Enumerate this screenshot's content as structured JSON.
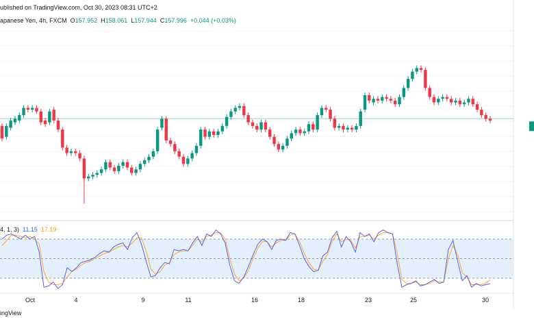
{
  "header": {
    "published": "ublished on TradingView.com, Oct 30, 2023 08:31 UTC+2",
    "symbol": "apanese Yen, 4h, FXCM",
    "open_label": "O",
    "open": "157.952",
    "high_label": "H",
    "high": "158.061",
    "low_label": "L",
    "low": "157.944",
    "close_label": "C",
    "close": "157.996",
    "change": "+0.044 (+0.03%)"
  },
  "oscillator": {
    "params": "4, 1, 3)",
    "k_value": "11.15",
    "d_value": "17.19",
    "levels": [
      80,
      50,
      20
    ]
  },
  "footer": {
    "brand": "ingView"
  },
  "colors": {
    "up": "#089981",
    "down": "#f23645",
    "k_line": "#5b5ef0",
    "d_line": "#ffa726",
    "band": "#e3f0fc",
    "price_line": "#8fd6c9",
    "grid": "#f0f3fa"
  },
  "chart_data": {
    "type": "candlestick",
    "xlabels": [
      "Oct",
      "4",
      "9",
      "11",
      "16",
      "18",
      "23",
      "25",
      "30"
    ],
    "candles": [
      {
        "o": 0.44,
        "c": 0.37
      },
      {
        "o": 0.38,
        "c": 0.44
      },
      {
        "o": 0.43,
        "c": 0.47
      },
      {
        "o": 0.46,
        "c": 0.48
      },
      {
        "o": 0.47,
        "c": 0.5
      },
      {
        "o": 0.5,
        "c": 0.54
      },
      {
        "o": 0.54,
        "c": 0.53
      },
      {
        "o": 0.53,
        "c": 0.54
      },
      {
        "o": 0.54,
        "c": 0.52
      },
      {
        "o": 0.52,
        "c": 0.46
      },
      {
        "o": 0.47,
        "c": 0.45
      },
      {
        "o": 0.46,
        "c": 0.52
      },
      {
        "o": 0.53,
        "c": 0.47
      },
      {
        "o": 0.47,
        "c": 0.42
      },
      {
        "o": 0.42,
        "c": 0.32
      },
      {
        "o": 0.32,
        "c": 0.29
      },
      {
        "o": 0.29,
        "c": 0.3
      },
      {
        "o": 0.3,
        "c": 0.29
      },
      {
        "o": 0.29,
        "c": 0.26
      },
      {
        "o": 0.26,
        "c": 0.15
      },
      {
        "o": 0.15,
        "c": 0.16
      },
      {
        "o": 0.16,
        "c": 0.17
      },
      {
        "o": 0.17,
        "c": 0.18
      },
      {
        "o": 0.18,
        "c": 0.2
      },
      {
        "o": 0.2,
        "c": 0.24
      },
      {
        "o": 0.24,
        "c": 0.21
      },
      {
        "o": 0.21,
        "c": 0.19
      },
      {
        "o": 0.19,
        "c": 0.22
      },
      {
        "o": 0.22,
        "c": 0.24
      },
      {
        "o": 0.24,
        "c": 0.21
      },
      {
        "o": 0.21,
        "c": 0.18
      },
      {
        "o": 0.18,
        "c": 0.2
      },
      {
        "o": 0.2,
        "c": 0.23
      },
      {
        "o": 0.23,
        "c": 0.25
      },
      {
        "o": 0.25,
        "c": 0.27
      },
      {
        "o": 0.27,
        "c": 0.3
      },
      {
        "o": 0.3,
        "c": 0.42
      },
      {
        "o": 0.43,
        "c": 0.48
      },
      {
        "o": 0.48,
        "c": 0.36
      },
      {
        "o": 0.36,
        "c": 0.34
      },
      {
        "o": 0.34,
        "c": 0.3
      },
      {
        "o": 0.3,
        "c": 0.27
      },
      {
        "o": 0.27,
        "c": 0.23
      },
      {
        "o": 0.23,
        "c": 0.26
      },
      {
        "o": 0.26,
        "c": 0.29
      },
      {
        "o": 0.29,
        "c": 0.33
      },
      {
        "o": 0.33,
        "c": 0.42
      },
      {
        "o": 0.42,
        "c": 0.38
      },
      {
        "o": 0.38,
        "c": 0.41
      },
      {
        "o": 0.41,
        "c": 0.39
      },
      {
        "o": 0.39,
        "c": 0.41
      },
      {
        "o": 0.41,
        "c": 0.44
      },
      {
        "o": 0.44,
        "c": 0.49
      },
      {
        "o": 0.49,
        "c": 0.52
      },
      {
        "o": 0.52,
        "c": 0.54
      },
      {
        "o": 0.54,
        "c": 0.55
      },
      {
        "o": 0.55,
        "c": 0.5
      },
      {
        "o": 0.5,
        "c": 0.46
      },
      {
        "o": 0.46,
        "c": 0.44
      },
      {
        "o": 0.44,
        "c": 0.42
      },
      {
        "o": 0.42,
        "c": 0.46
      },
      {
        "o": 0.46,
        "c": 0.42
      },
      {
        "o": 0.42,
        "c": 0.38
      },
      {
        "o": 0.38,
        "c": 0.34
      },
      {
        "o": 0.34,
        "c": 0.31
      },
      {
        "o": 0.31,
        "c": 0.33
      },
      {
        "o": 0.33,
        "c": 0.37
      },
      {
        "o": 0.37,
        "c": 0.4
      },
      {
        "o": 0.4,
        "c": 0.42
      },
      {
        "o": 0.42,
        "c": 0.4
      },
      {
        "o": 0.4,
        "c": 0.41
      },
      {
        "o": 0.41,
        "c": 0.45
      },
      {
        "o": 0.45,
        "c": 0.42
      },
      {
        "o": 0.42,
        "c": 0.5
      },
      {
        "o": 0.5,
        "c": 0.54
      },
      {
        "o": 0.54,
        "c": 0.53
      },
      {
        "o": 0.53,
        "c": 0.48
      },
      {
        "o": 0.48,
        "c": 0.43
      },
      {
        "o": 0.43,
        "c": 0.44
      },
      {
        "o": 0.44,
        "c": 0.42
      },
      {
        "o": 0.42,
        "c": 0.43
      },
      {
        "o": 0.43,
        "c": 0.42
      },
      {
        "o": 0.42,
        "c": 0.44
      },
      {
        "o": 0.44,
        "c": 0.52
      },
      {
        "o": 0.53,
        "c": 0.61
      },
      {
        "o": 0.61,
        "c": 0.58
      },
      {
        "o": 0.57,
        "c": 0.59
      },
      {
        "o": 0.59,
        "c": 0.58
      },
      {
        "o": 0.58,
        "c": 0.6
      },
      {
        "o": 0.6,
        "c": 0.59
      },
      {
        "o": 0.59,
        "c": 0.58
      },
      {
        "o": 0.58,
        "c": 0.56
      },
      {
        "o": 0.56,
        "c": 0.6
      },
      {
        "o": 0.6,
        "c": 0.65
      },
      {
        "o": 0.65,
        "c": 0.7
      },
      {
        "o": 0.7,
        "c": 0.74
      },
      {
        "o": 0.74,
        "c": 0.76
      },
      {
        "o": 0.76,
        "c": 0.75
      },
      {
        "o": 0.75,
        "c": 0.65
      },
      {
        "o": 0.65,
        "c": 0.6
      },
      {
        "o": 0.6,
        "c": 0.57
      },
      {
        "o": 0.57,
        "c": 0.59
      },
      {
        "o": 0.59,
        "c": 0.6
      },
      {
        "o": 0.6,
        "c": 0.59
      },
      {
        "o": 0.59,
        "c": 0.57
      },
      {
        "o": 0.57,
        "c": 0.58
      },
      {
        "o": 0.58,
        "c": 0.56
      },
      {
        "o": 0.56,
        "c": 0.57
      },
      {
        "o": 0.57,
        "c": 0.59
      },
      {
        "o": 0.59,
        "c": 0.56
      },
      {
        "o": 0.56,
        "c": 0.53
      },
      {
        "o": 0.53,
        "c": 0.5
      },
      {
        "o": 0.5,
        "c": 0.48
      },
      {
        "o": 0.48,
        "c": 0.47
      }
    ],
    "price_line_level": 0.48,
    "oscillator_k": [
      80,
      86,
      88,
      84,
      80,
      86,
      80,
      84,
      60,
      6,
      8,
      14,
      4,
      10,
      36,
      30,
      36,
      44,
      46,
      48,
      52,
      58,
      62,
      60,
      68,
      72,
      74,
      64,
      82,
      90,
      72,
      46,
      22,
      24,
      36,
      44,
      42,
      64,
      62,
      64,
      62,
      74,
      84,
      70,
      88,
      84,
      94,
      88,
      74,
      40,
      16,
      12,
      22,
      38,
      56,
      72,
      80,
      76,
      64,
      78,
      80,
      78,
      90,
      88,
      70,
      50,
      38,
      30,
      32,
      54,
      60,
      82,
      92,
      68,
      84,
      76,
      60,
      90,
      84,
      88,
      76,
      90,
      94,
      90,
      88,
      42,
      6,
      10,
      12,
      16,
      8,
      10,
      14,
      18,
      12,
      14,
      64,
      78,
      46,
      16,
      24,
      6,
      12,
      8,
      10,
      11.15
    ],
    "oscillator_d": [
      70,
      78,
      86,
      86,
      84,
      82,
      84,
      80,
      72,
      30,
      14,
      10,
      10,
      12,
      22,
      30,
      34,
      40,
      44,
      46,
      50,
      54,
      58,
      60,
      64,
      68,
      70,
      68,
      74,
      82,
      82,
      62,
      34,
      26,
      30,
      40,
      44,
      56,
      60,
      62,
      62,
      70,
      80,
      76,
      84,
      86,
      90,
      90,
      80,
      50,
      26,
      16,
      20,
      32,
      50,
      66,
      76,
      76,
      68,
      74,
      78,
      78,
      86,
      88,
      76,
      58,
      44,
      34,
      32,
      46,
      56,
      76,
      88,
      76,
      80,
      78,
      66,
      84,
      84,
      86,
      80,
      86,
      90,
      90,
      88,
      58,
      18,
      12,
      12,
      14,
      10,
      10,
      12,
      16,
      14,
      14,
      50,
      70,
      56,
      28,
      22,
      10,
      10,
      10,
      12,
      17.19
    ]
  }
}
